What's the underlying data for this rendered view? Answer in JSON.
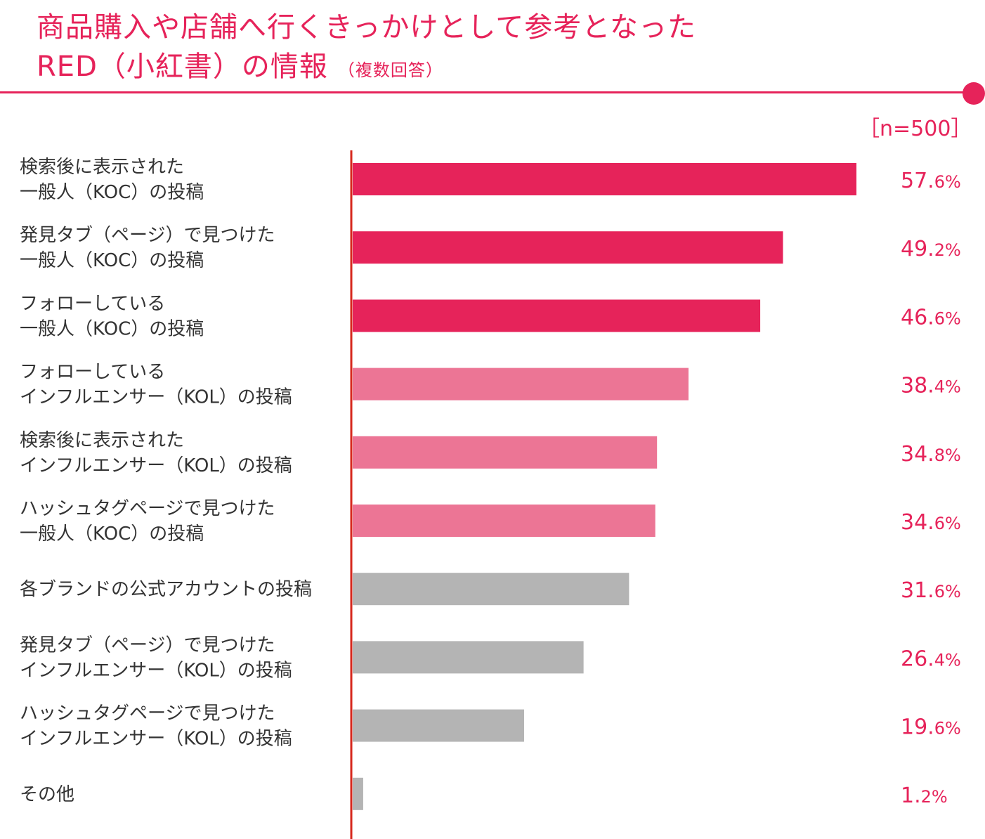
{
  "header": {
    "title_line1": "商品購入や店舗へ行くきっかけとして参考となった",
    "title_line2": "RED（小紅書）の情報",
    "title_note": "（複数回答）",
    "sample_size": "［n=500］"
  },
  "colors": {
    "accent": "#e6235a",
    "tier_high": "#e6235a",
    "tier_mid": "#ec7595",
    "tier_low": "#b4b4b4",
    "axis": "#d7281e",
    "label_text": "#333333"
  },
  "chart_data": {
    "type": "bar",
    "orientation": "horizontal",
    "title": "商品購入や店舗へ行くきっかけとして参考となった RED（小紅書）の情報（複数回答）",
    "xlabel": "",
    "ylabel": "",
    "xlim": [
      0,
      60
    ],
    "unit": "%",
    "grid": false,
    "legend": "none",
    "categories": [
      [
        "検索後に表示された",
        "一般人（KOC）の投稿"
      ],
      [
        "発見タブ（ページ）で見つけた",
        "一般人（KOC）の投稿"
      ],
      [
        "フォローしている",
        "一般人（KOC）の投稿"
      ],
      [
        "フォローしている",
        "インフルエンサー（KOL）の投稿"
      ],
      [
        "検索後に表示された",
        "インフルエンサー（KOL）の投稿"
      ],
      [
        "ハッシュタグページで見つけた",
        "一般人（KOC）の投稿"
      ],
      [
        "各ブランドの公式アカウントの投稿"
      ],
      [
        "発見タブ（ページ）で見つけた",
        "インフルエンサー（KOL）の投稿"
      ],
      [
        "ハッシュタグページで見つけた",
        "インフルエンサー（KOL）の投稿"
      ],
      [
        "その他"
      ]
    ],
    "values": [
      57.6,
      49.2,
      46.6,
      38.4,
      34.8,
      34.6,
      31.6,
      26.4,
      19.6,
      1.2
    ],
    "value_labels": [
      [
        "57.",
        "6%"
      ],
      [
        "49.",
        "2%"
      ],
      [
        "46.",
        "6%"
      ],
      [
        "38.",
        "4%"
      ],
      [
        "34.",
        "8%"
      ],
      [
        "34.",
        "6%"
      ],
      [
        "31.",
        "6%"
      ],
      [
        "26.",
        "4%"
      ],
      [
        "19.",
        "6%"
      ],
      [
        "1.",
        "2%"
      ]
    ],
    "bar_tiers": [
      "high",
      "high",
      "high",
      "mid",
      "mid",
      "mid",
      "low",
      "low",
      "low",
      "low"
    ]
  }
}
